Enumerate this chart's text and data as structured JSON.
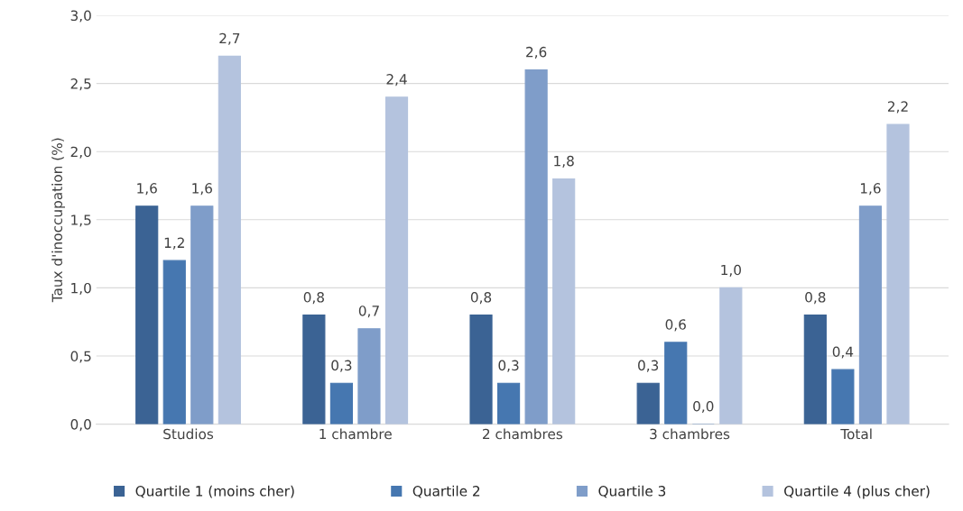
{
  "chart_data": {
    "type": "bar",
    "ylabel": "Taux d'inoccupation (%)",
    "categories": [
      "Studios",
      "1 chambre",
      "2 chambres",
      "3 chambres",
      "Total"
    ],
    "series": [
      {
        "name": "Quartile 1 (moins cher)",
        "color": "#3b6394",
        "values": [
          1.6,
          0.8,
          0.8,
          0.3,
          0.8
        ],
        "value_labels": [
          "1,6",
          "0,8",
          "0,8",
          "0,3",
          "0,8"
        ]
      },
      {
        "name": "Quartile 2",
        "color": "#4677b0",
        "values": [
          1.2,
          0.3,
          0.3,
          0.6,
          0.4
        ],
        "value_labels": [
          "1,2",
          "0,3",
          "0,3",
          "0,6",
          "0,4"
        ]
      },
      {
        "name": "Quartile 3",
        "color": "#7f9dc9",
        "values": [
          1.6,
          0.7,
          2.6,
          0.0,
          1.6
        ],
        "value_labels": [
          "1,6",
          "0,7",
          "2,6",
          "0,0",
          "1,6"
        ]
      },
      {
        "name": "Quartile 4 (plus cher)",
        "color": "#b4c3de",
        "values": [
          2.7,
          2.4,
          1.8,
          1.0,
          2.2
        ],
        "value_labels": [
          "2,7",
          "2,4",
          "1,8",
          "1,0",
          "2,2"
        ]
      }
    ],
    "ylim": [
      0,
      3.0
    ],
    "yticks": [
      {
        "value": 0,
        "label": "0,0"
      },
      {
        "value": 0.5,
        "label": "0,5"
      },
      {
        "value": 1.0,
        "label": "1,0"
      },
      {
        "value": 1.5,
        "label": "1,5"
      },
      {
        "value": 2.0,
        "label": "2,0"
      },
      {
        "value": 2.5,
        "label": "2,5"
      },
      {
        "value": 3.0,
        "label": "3,0"
      }
    ],
    "grid": "y",
    "legend": "bottom"
  }
}
